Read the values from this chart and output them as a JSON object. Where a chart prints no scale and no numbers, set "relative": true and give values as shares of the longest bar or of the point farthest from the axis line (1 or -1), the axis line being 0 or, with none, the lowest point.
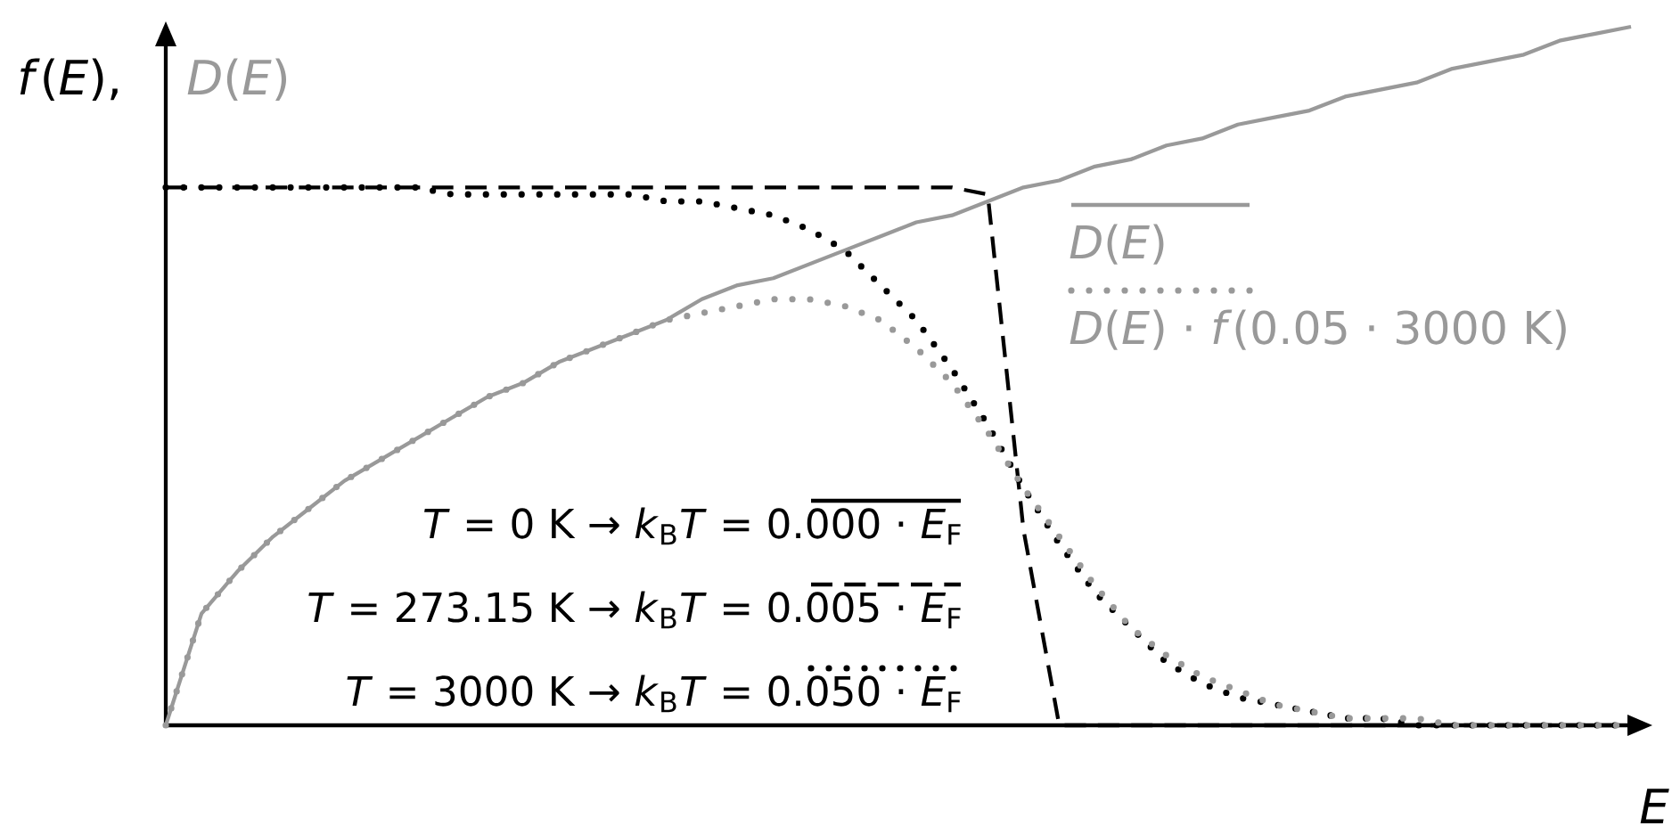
{
  "chart_data": {
    "type": "line",
    "relative": true,
    "ylabel": "*f*(*E*),",
    "y2label": "*D*(*E*)",
    "xlabel": "*E*",
    "categories": [
      null,
      null,
      null,
      null,
      null,
      null,
      null,
      null,
      null,
      null,
      null,
      null,
      null,
      null,
      null,
      null,
      null,
      null,
      null,
      null,
      null,
      null,
      null,
      null,
      null,
      null,
      null,
      null,
      null,
      null,
      null,
      null,
      null,
      null,
      null,
      null,
      null,
      null,
      null,
      null,
      null,
      null
    ],
    "legend": "right",
    "series": [
      {
        "name": "*T* = 0 K → *k*$_{B}$*T* = 0.000 · *E*$_{F}$",
        "color": "#000000",
        "line_style": "solid",
        "values": [
          null,
          null,
          null,
          null,
          null,
          null,
          null,
          null,
          null,
          null,
          null,
          null,
          null,
          null,
          null,
          null,
          null,
          null,
          null,
          null,
          null,
          null,
          null,
          null,
          null,
          null,
          null,
          null,
          null,
          null,
          null,
          null,
          null,
          null,
          null,
          null,
          null,
          null,
          null,
          null,
          null,
          null
        ]
      },
      {
        "name": "*T* = 273.15 K → *k*$_{B}$*T* = 0.005 · *E*$_{F}$",
        "color": "#000000",
        "line_style": "dashed",
        "values": [
          0.77,
          0.77,
          0.77,
          0.77,
          0.77,
          0.77,
          0.77,
          0.77,
          0.77,
          0.77,
          0.77,
          0.77,
          0.77,
          0.77,
          0.77,
          0.77,
          0.77,
          0.77,
          0.77,
          0.77,
          0.77,
          0.77,
          0.77,
          0.76,
          0.28,
          0,
          0,
          0,
          0,
          0,
          0,
          0,
          0,
          0,
          0,
          0,
          0,
          0,
          0,
          0,
          0,
          0
        ]
      },
      {
        "name": "*T* = 3000 K → *k*$_{B}$*T* = 0.050 · *E*$_{F}$",
        "color": "#000000",
        "line_style": "dotted",
        "values": [
          0.77,
          0.77,
          0.77,
          0.77,
          0.77,
          0.77,
          0.77,
          0.77,
          0.76,
          0.76,
          0.76,
          0.76,
          0.76,
          0.76,
          0.75,
          0.75,
          0.74,
          0.73,
          0.71,
          0.68,
          0.63,
          0.58,
          0.51,
          0.43,
          0.34,
          0.26,
          0.19,
          0.14,
          0.09,
          0.06,
          0.04,
          0.03,
          0.02,
          0.01,
          0.01,
          0,
          0,
          0,
          0,
          0,
          0,
          0
        ]
      },
      {
        "name": "*D*(*E*)",
        "color": "#999999",
        "line_style": "solid",
        "values": [
          0,
          0.16,
          0.22,
          0.27,
          0.31,
          0.35,
          0.38,
          0.41,
          0.44,
          0.47,
          0.49,
          0.52,
          0.54,
          0.56,
          0.58,
          0.61,
          0.63,
          0.64,
          0.66,
          0.68,
          0.7,
          0.72,
          0.73,
          0.75,
          0.77,
          0.78,
          0.8,
          0.81,
          0.83,
          0.84,
          0.86,
          0.87,
          0.88,
          0.9,
          0.91,
          0.92,
          0.94,
          0.95,
          0.96,
          0.98,
          0.99,
          1
        ]
      },
      {
        "name": "*D*(*E*) · *f*(0.05 · 3000 K)",
        "color": "#999999",
        "line_style": "dotted",
        "values": [
          0,
          0.16,
          0.22,
          0.27,
          0.31,
          0.35,
          0.38,
          0.41,
          0.44,
          0.47,
          0.49,
          0.52,
          0.54,
          0.56,
          0.58,
          0.59,
          0.6,
          0.61,
          0.61,
          0.6,
          0.58,
          0.54,
          0.49,
          0.42,
          0.34,
          0.27,
          0.2,
          0.14,
          0.1,
          0.07,
          0.05,
          0.03,
          0.02,
          0.01,
          0.01,
          0.01,
          0,
          0,
          0,
          0,
          0,
          0
        ]
      }
    ]
  }
}
